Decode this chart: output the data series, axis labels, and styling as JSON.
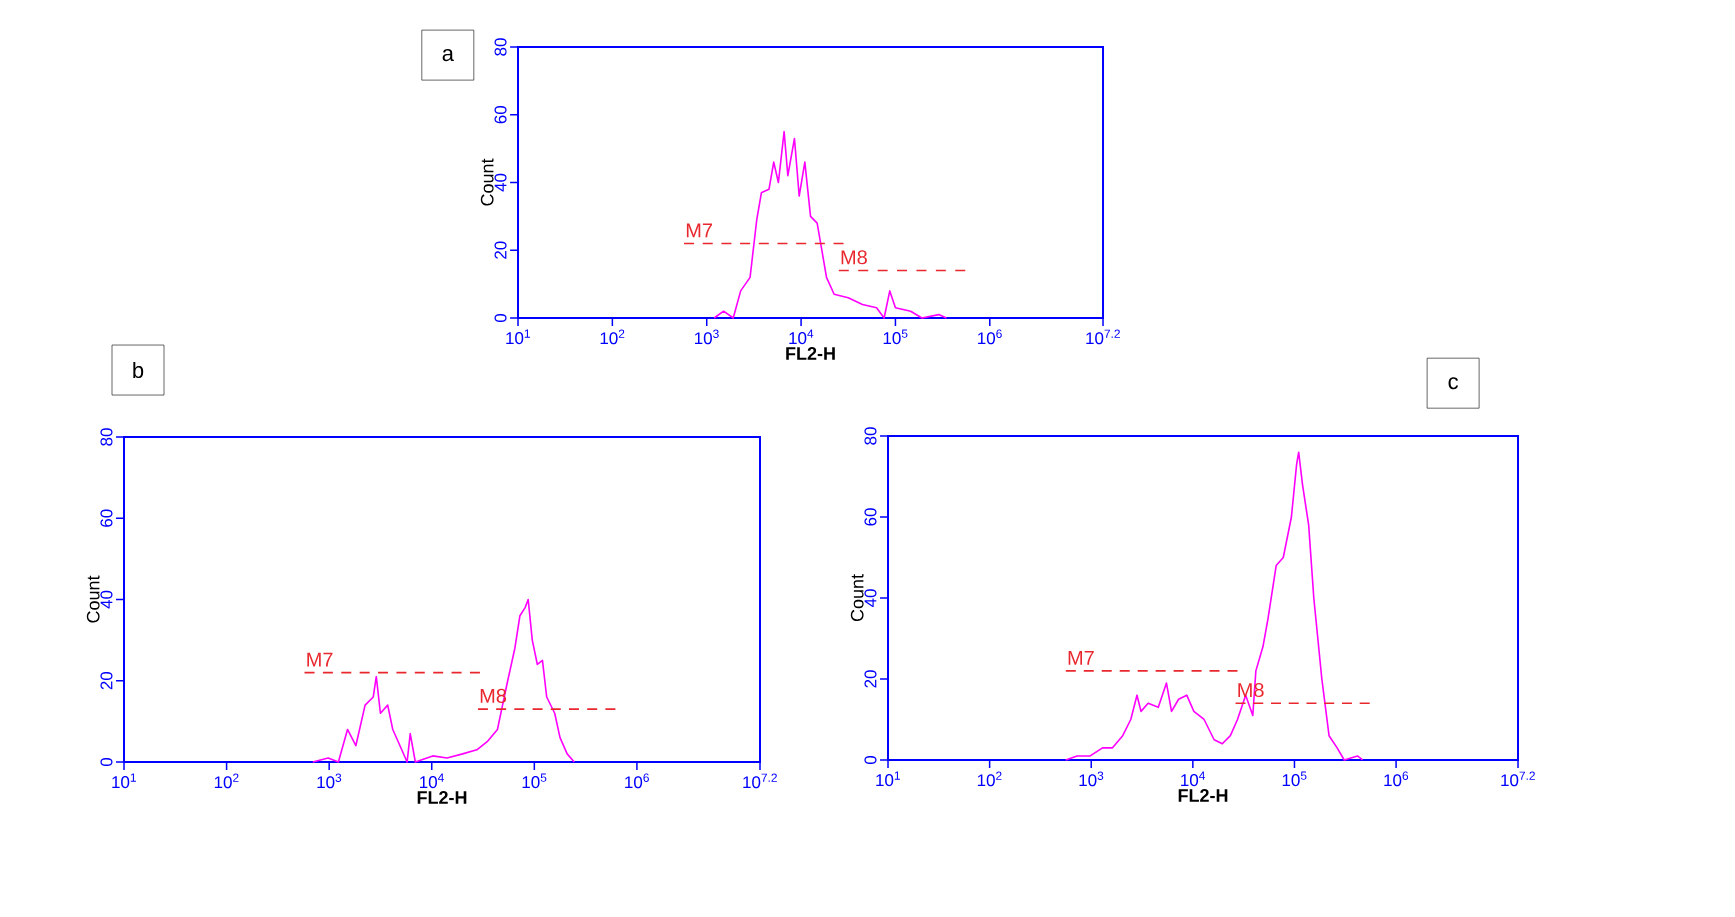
{
  "chart_data": [
    {
      "type": "line",
      "title": "a",
      "xlabel": "FL2-H",
      "ylabel": "Count",
      "log": "x",
      "xlim": [
        10,
        15848932
      ],
      "ylim": [
        0,
        80
      ],
      "xticks": [
        {
          "value": 10,
          "label": "10$^{1}$"
        },
        {
          "value": 100,
          "label": "10$^{2}$"
        },
        {
          "value": 1000,
          "label": "10$^{3}$"
        },
        {
          "value": 10000,
          "label": "10$^{4}$"
        },
        {
          "value": 100000,
          "label": "10$^{5}$"
        },
        {
          "value": 1000000,
          "label": "10$^{6}$"
        },
        {
          "value": 15848932,
          "label": "10$^{7.2}$"
        }
      ],
      "yticks": [
        0,
        20,
        40,
        60,
        80
      ],
      "series": [
        {
          "color": "#ff00ff",
          "x": [
            1200,
            1510,
            1910,
            2290,
            2880,
            3390,
            3800,
            4570,
            5130,
            5750,
            6610,
            7240,
            8510,
            9550,
            10960,
            12600,
            14800,
            16600,
            18600,
            22400,
            31600,
            44700,
            63100,
            75900,
            87100,
            100000,
            145000,
            191000,
            288000,
            347000
          ],
          "values": [
            0,
            2,
            0,
            8,
            12,
            29,
            37,
            38,
            46,
            40,
            55,
            42,
            53,
            36,
            46,
            30,
            28,
            20,
            12,
            7,
            6,
            4,
            3,
            0,
            8,
            3,
            2,
            0,
            1,
            0
          ]
        },
        {
          "name": "M7",
          "color": "#e8282e",
          "line_style": "dashed",
          "x": [
            575,
            28200
          ],
          "values": [
            22,
            22
          ]
        },
        {
          "name": "M8",
          "color": "#e8282e",
          "line_style": "dashed",
          "x": [
            25100,
            550000
          ],
          "values": [
            14,
            14
          ]
        }
      ]
    },
    {
      "type": "line",
      "title": "b",
      "xlabel": "FL2-H",
      "ylabel": "Count",
      "log": "x",
      "xlim": [
        10,
        15848932
      ],
      "ylim": [
        0,
        80
      ],
      "xticks": [
        {
          "value": 10,
          "label": "10$^{1}$"
        },
        {
          "value": 100,
          "label": "10$^{2}$"
        },
        {
          "value": 1000,
          "label": "10$^{3}$"
        },
        {
          "value": 10000,
          "label": "10$^{4}$"
        },
        {
          "value": 100000,
          "label": "10$^{5}$"
        },
        {
          "value": 1000000,
          "label": "10$^{6}$"
        },
        {
          "value": 15848932,
          "label": "10$^{7.2}$"
        }
      ],
      "yticks": [
        0,
        20,
        40,
        60,
        80
      ],
      "series": [
        {
          "color": "#ff00ff",
          "x": [
            692,
            977,
            1230,
            1510,
            1820,
            2240,
            2690,
            2880,
            3160,
            3720,
            4170,
            4900,
            5750,
            6170,
            6920,
            10230,
            14100,
            20000,
            27500,
            34700,
            43700,
            49000,
            55000,
            64600,
            72400,
            81300,
            87100,
            95500,
            107000,
            120000,
            132000,
            158000,
            178000,
            209000,
            245000
          ],
          "values": [
            0,
            1,
            0,
            8,
            4,
            14,
            16,
            21,
            12,
            14,
            8,
            4,
            0,
            7,
            0,
            1.5,
            1,
            2,
            3,
            5,
            8,
            14,
            20,
            28,
            36,
            38,
            40,
            30,
            24,
            25,
            16,
            12,
            6,
            2,
            0
          ]
        },
        {
          "name": "M7",
          "color": "#e8282e",
          "line_style": "dashed",
          "x": [
            575,
            29500
          ],
          "values": [
            22,
            22
          ]
        },
        {
          "name": "M8",
          "color": "#e8282e",
          "line_style": "dashed",
          "x": [
            28200,
            617000
          ],
          "values": [
            13,
            13
          ]
        }
      ]
    },
    {
      "type": "line",
      "title": "c",
      "xlabel": "FL2-H",
      "ylabel": "Count",
      "log": "x",
      "xlim": [
        10,
        15848932
      ],
      "ylim": [
        0,
        80
      ],
      "xticks": [
        {
          "value": 10,
          "label": "10$^{1}$"
        },
        {
          "value": 100,
          "label": "10$^{2}$"
        },
        {
          "value": 1000,
          "label": "10$^{3}$"
        },
        {
          "value": 10000,
          "label": "10$^{4}$"
        },
        {
          "value": 100000,
          "label": "10$^{5}$"
        },
        {
          "value": 1000000,
          "label": "10$^{6}$"
        },
        {
          "value": 15848932,
          "label": "10$^{7.2}$"
        }
      ],
      "yticks": [
        0,
        20,
        40,
        60,
        80
      ],
      "series": [
        {
          "color": "#ff00ff",
          "x": [
            562,
            724,
            977,
            1290,
            1620,
            2040,
            2450,
            2820,
            3090,
            3630,
            4570,
            5500,
            6170,
            7240,
            8710,
            10230,
            12900,
            16200,
            19500,
            23400,
            27500,
            33100,
            38900,
            41700,
            49000,
            55000,
            66100,
            77600,
            93300,
            105000,
            110000,
            120000,
            138000,
            155000,
            186000,
            219000,
            263000,
            309000,
            417000,
            468000
          ],
          "values": [
            0,
            1,
            1,
            3,
            3,
            6,
            10,
            16,
            12,
            14,
            13,
            19,
            12,
            15,
            16,
            12,
            10,
            5,
            4,
            6,
            10,
            16,
            11,
            22,
            28,
            35,
            48,
            50,
            60,
            73,
            76,
            68,
            58,
            40,
            20,
            6,
            3,
            0,
            1,
            0
          ]
        },
        {
          "name": "M7",
          "color": "#e8282e",
          "line_style": "dashed",
          "x": [
            562,
            27500
          ],
          "values": [
            22,
            22
          ]
        },
        {
          "name": "M8",
          "color": "#e8282e",
          "line_style": "dashed",
          "x": [
            26300,
            550000
          ],
          "values": [
            14,
            14
          ]
        }
      ]
    }
  ]
}
